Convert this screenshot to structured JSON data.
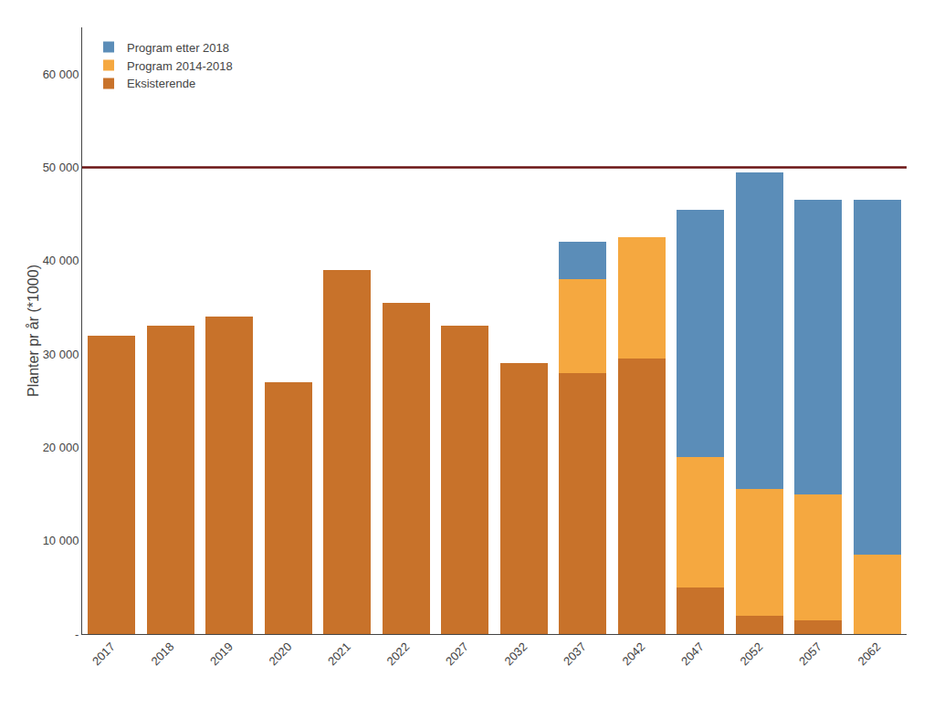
{
  "chart_data": {
    "type": "bar",
    "stacked": true,
    "categories": [
      "2017",
      "2018",
      "2019",
      "2020",
      "2021",
      "2022",
      "2027",
      "2032",
      "2037",
      "2042",
      "2047",
      "2052",
      "2057",
      "2062"
    ],
    "series": [
      {
        "name": "Eksisterende",
        "color": "#C8722A",
        "values": [
          32000,
          33000,
          34000,
          27000,
          39000,
          35500,
          33000,
          29000,
          28000,
          29500,
          5000,
          2000,
          1500,
          0
        ]
      },
      {
        "name": "Program 2014-2018",
        "color": "#F5A840",
        "values": [
          0,
          0,
          0,
          0,
          0,
          0,
          0,
          0,
          10000,
          13000,
          14000,
          13500,
          13500,
          8500
        ]
      },
      {
        "name": "Program etter 2018",
        "color": "#5B8DB8",
        "values": [
          0,
          0,
          0,
          0,
          0,
          0,
          0,
          0,
          4000,
          0,
          26500,
          34000,
          31500,
          38000
        ]
      }
    ],
    "reference_lines": [
      {
        "value": 50000,
        "color": "#6B1414"
      }
    ],
    "ylabel": "Planter pr år (*1000)",
    "ylim": [
      0,
      65000
    ],
    "yticks": [
      {
        "value": 0,
        "label": "-"
      },
      {
        "value": 10000,
        "label": "10 000"
      },
      {
        "value": 20000,
        "label": "20 000"
      },
      {
        "value": 30000,
        "label": "30 000"
      },
      {
        "value": 40000,
        "label": "40 000"
      },
      {
        "value": 50000,
        "label": "50 000"
      },
      {
        "value": 60000,
        "label": "60 000"
      }
    ],
    "grid": false,
    "legend": "upper left"
  }
}
